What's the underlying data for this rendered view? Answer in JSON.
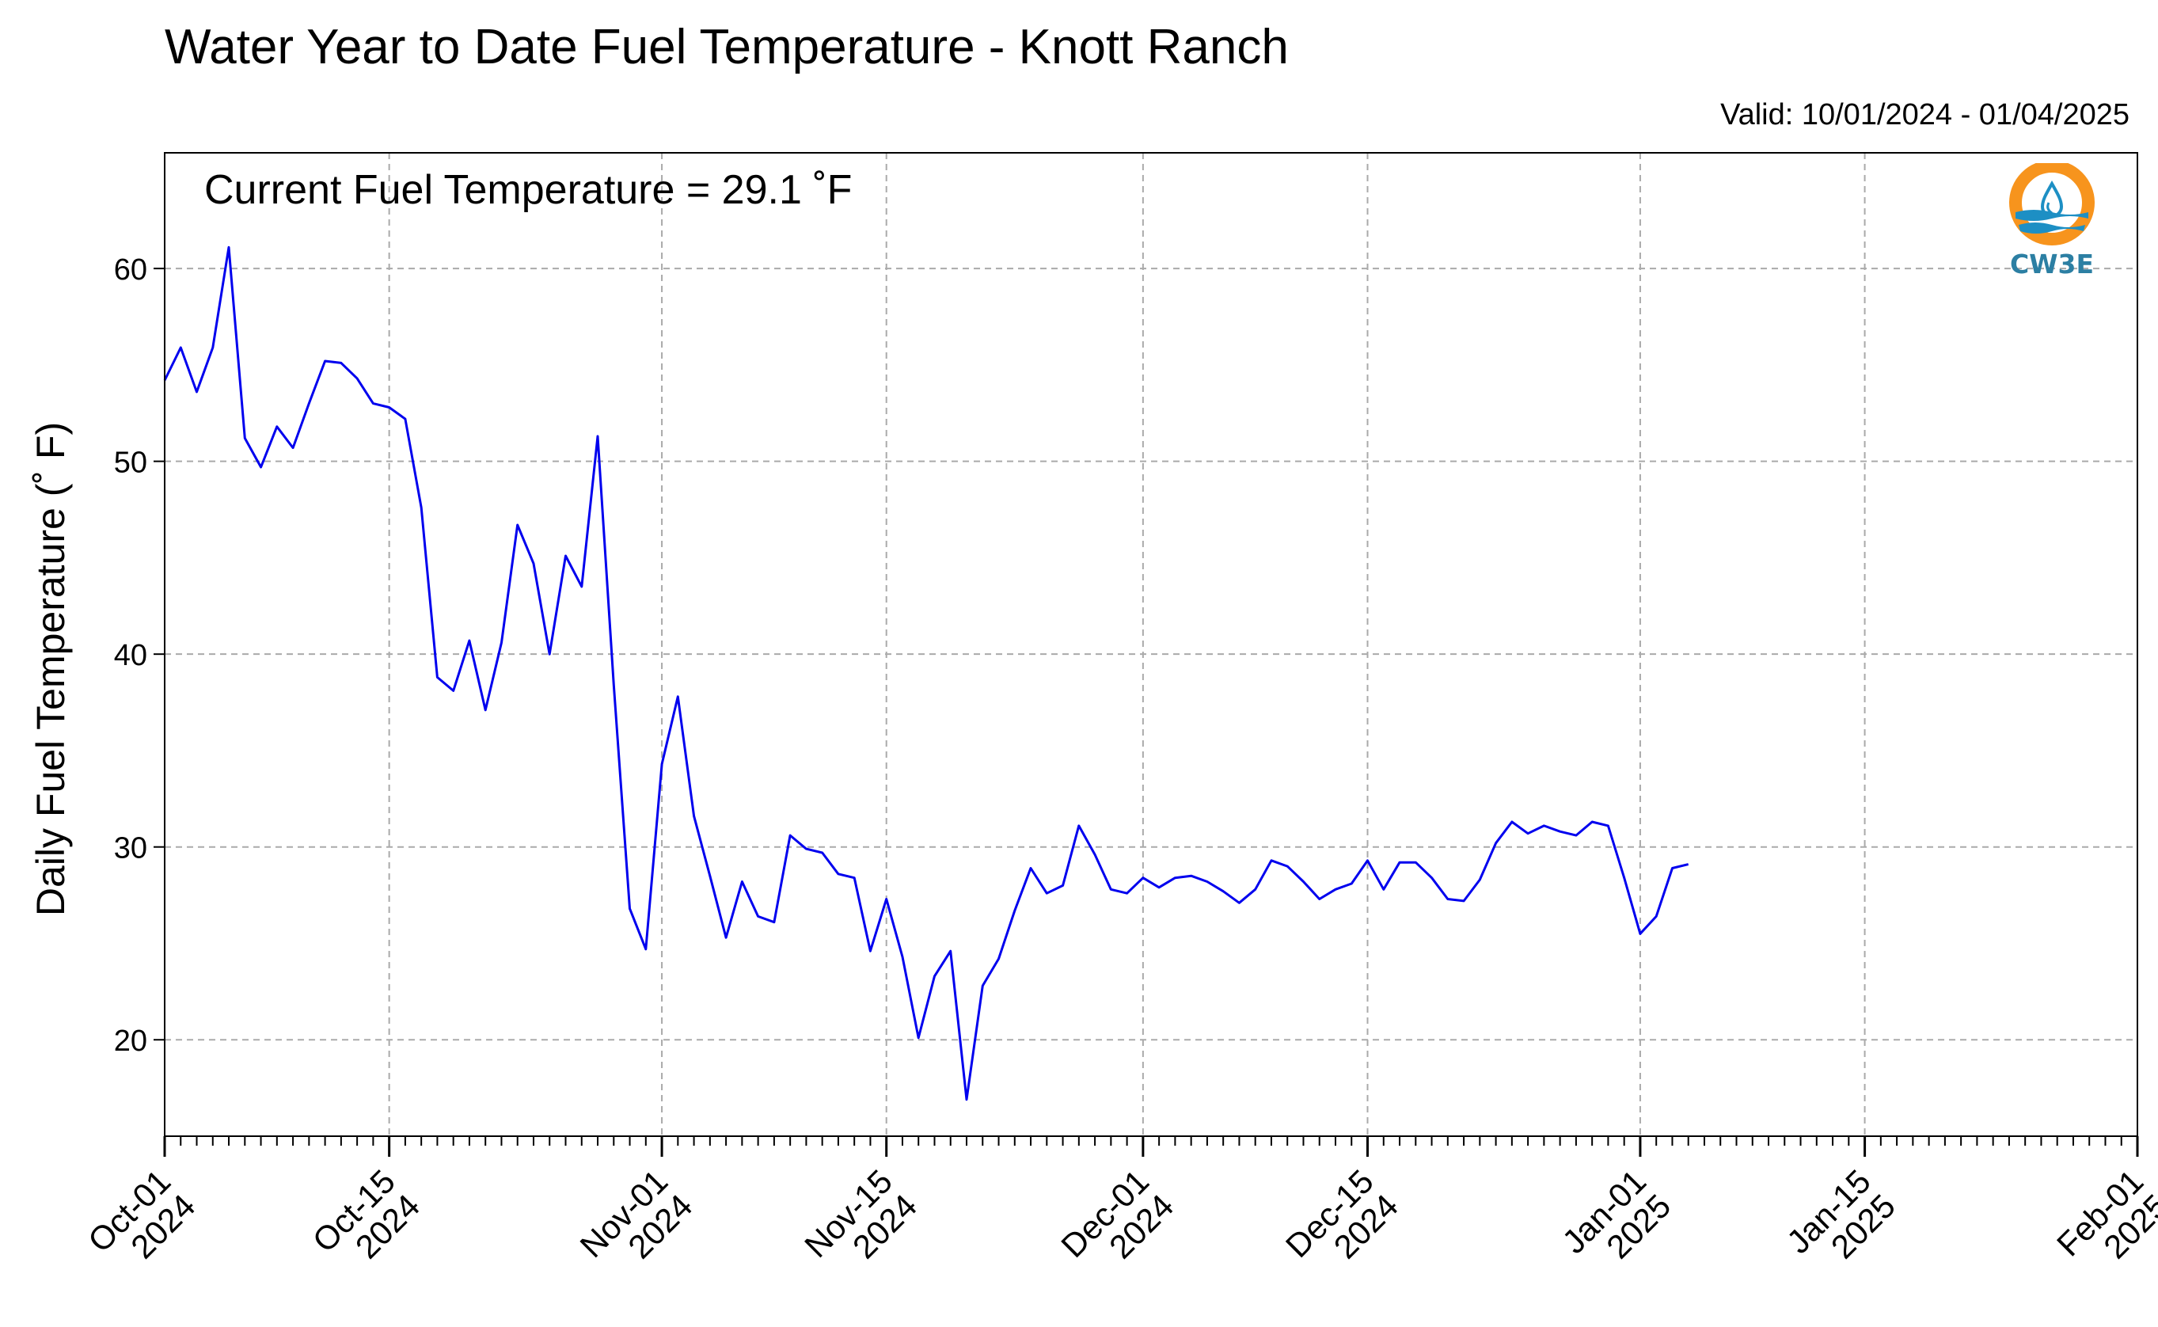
{
  "chart_data": {
    "type": "line",
    "title": "Water Year to Date Fuel Temperature - Knott Ranch",
    "subtitle": "Valid: 10/01/2024 - 01/04/2025",
    "annotation": "Current Fuel Temperature = 29.1  ˚F",
    "xlabel": "",
    "ylabel": "Daily Fuel Temperature (˚ F)",
    "xlim": [
      "2024-10-01",
      "2025-02-01"
    ],
    "ylim": [
      15,
      66
    ],
    "yticks": [
      20,
      30,
      40,
      50,
      60
    ],
    "xticks": [
      {
        "date": "2024-10-01",
        "line1": "Oct-01",
        "line2": "2024"
      },
      {
        "date": "2024-10-15",
        "line1": "Oct-15",
        "line2": "2024"
      },
      {
        "date": "2024-11-01",
        "line1": "Nov-01",
        "line2": "2024"
      },
      {
        "date": "2024-11-15",
        "line1": "Nov-15",
        "line2": "2024"
      },
      {
        "date": "2024-12-01",
        "line1": "Dec-01",
        "line2": "2024"
      },
      {
        "date": "2024-12-15",
        "line1": "Dec-15",
        "line2": "2024"
      },
      {
        "date": "2025-01-01",
        "line1": "Jan-01",
        "line2": "2025"
      },
      {
        "date": "2025-01-15",
        "line1": "Jan-15",
        "line2": "2025"
      },
      {
        "date": "2025-02-01",
        "line1": "Feb-01",
        "line2": "2025"
      }
    ],
    "grid": true,
    "line_color": "#0000ee",
    "series": [
      {
        "start_date": "2024-10-01",
        "values": [
          54.2,
          55.9,
          53.6,
          55.9,
          61.1,
          51.2,
          49.7,
          51.8,
          50.7,
          53.0,
          55.2,
          55.1,
          54.3,
          53.0,
          52.8,
          52.2,
          47.6,
          38.8,
          38.1,
          40.7,
          37.1,
          40.6,
          46.7,
          44.7,
          40.0,
          45.1,
          43.5,
          51.3,
          38.4,
          26.8,
          24.7,
          34.3,
          37.8,
          31.6,
          28.5,
          25.3,
          28.2,
          26.4,
          26.1,
          30.6,
          29.9,
          29.7,
          28.6,
          28.4,
          24.6,
          27.3,
          24.3,
          20.1,
          23.3,
          24.6,
          16.9,
          22.8,
          24.2,
          26.7,
          28.9,
          27.6,
          28.0,
          31.1,
          29.6,
          27.8,
          27.6,
          28.4,
          27.9,
          28.4,
          28.5,
          28.2,
          27.7,
          27.1,
          27.8,
          29.3,
          29.0,
          28.2,
          27.3,
          27.8,
          28.1,
          29.3,
          27.8,
          29.2,
          29.2,
          28.4,
          27.3,
          27.2,
          28.3,
          30.2,
          31.3,
          30.7,
          31.1,
          30.8,
          30.6,
          31.3,
          31.1,
          28.4,
          25.5,
          26.4,
          28.9,
          29.1
        ]
      }
    ]
  },
  "logo": {
    "text": "CW3E",
    "ring_color": "#f7941d",
    "wave_color": "#1d8fc4",
    "text_color": "#2c7fa3"
  }
}
